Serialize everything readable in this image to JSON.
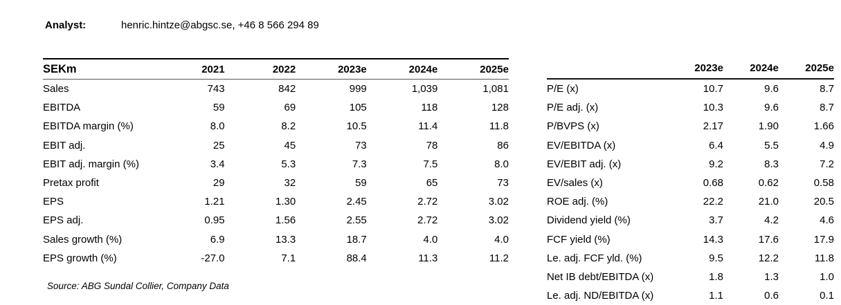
{
  "analyst": {
    "label": "Analyst:",
    "contact": "henric.hintze@abgsc.se, +46 8 566 294 89"
  },
  "left_table": {
    "header": {
      "label": "SEKm",
      "columns": [
        "2021",
        "2022",
        "2023e",
        "2024e",
        "2025e"
      ]
    },
    "rows": [
      {
        "label": "Sales",
        "values": [
          "743",
          "842",
          "999",
          "1,039",
          "1,081"
        ]
      },
      {
        "label": "EBITDA",
        "values": [
          "59",
          "69",
          "105",
          "118",
          "128"
        ]
      },
      {
        "label": "EBITDA margin (%)",
        "values": [
          "8.0",
          "8.2",
          "10.5",
          "11.4",
          "11.8"
        ]
      },
      {
        "label": "EBIT adj.",
        "values": [
          "25",
          "45",
          "73",
          "78",
          "86"
        ]
      },
      {
        "label": "EBIT adj. margin (%)",
        "values": [
          "3.4",
          "5.3",
          "7.3",
          "7.5",
          "8.0"
        ]
      },
      {
        "label": "Pretax profit",
        "values": [
          "29",
          "32",
          "59",
          "65",
          "73"
        ]
      },
      {
        "label": "EPS",
        "values": [
          "1.21",
          "1.30",
          "2.45",
          "2.72",
          "3.02"
        ]
      },
      {
        "label": "EPS adj.",
        "values": [
          "0.95",
          "1.56",
          "2.55",
          "2.72",
          "3.02"
        ]
      },
      {
        "label": "Sales growth (%)",
        "values": [
          "6.9",
          "13.3",
          "18.7",
          "4.0",
          "4.0"
        ]
      },
      {
        "label": "EPS growth (%)",
        "values": [
          "-27.0",
          "7.1",
          "88.4",
          "11.3",
          "11.2"
        ]
      }
    ]
  },
  "right_table": {
    "header": {
      "label": "",
      "columns": [
        "2023e",
        "2024e",
        "2025e"
      ]
    },
    "rows": [
      {
        "label": "P/E (x)",
        "values": [
          "10.7",
          "9.6",
          "8.7"
        ]
      },
      {
        "label": "P/E adj. (x)",
        "values": [
          "10.3",
          "9.6",
          "8.7"
        ]
      },
      {
        "label": "P/BVPS (x)",
        "values": [
          "2.17",
          "1.90",
          "1.66"
        ]
      },
      {
        "label": "EV/EBITDA (x)",
        "values": [
          "6.4",
          "5.5",
          "4.9"
        ]
      },
      {
        "label": "EV/EBIT adj. (x)",
        "values": [
          "9.2",
          "8.3",
          "7.2"
        ]
      },
      {
        "label": "EV/sales (x)",
        "values": [
          "0.68",
          "0.62",
          "0.58"
        ]
      },
      {
        "label": "ROE adj. (%)",
        "values": [
          "22.2",
          "21.0",
          "20.5"
        ]
      },
      {
        "label": "Dividend yield (%)",
        "values": [
          "3.7",
          "4.2",
          "4.6"
        ]
      },
      {
        "label": "FCF yield (%)",
        "values": [
          "14.3",
          "17.6",
          "17.9"
        ]
      },
      {
        "label": "Le. adj. FCF yld. (%)",
        "values": [
          "9.5",
          "12.2",
          "11.8"
        ]
      },
      {
        "label": "Net IB debt/EBITDA (x)",
        "values": [
          "1.8",
          "1.3",
          "1.0"
        ]
      },
      {
        "label": "Le. adj. ND/EBITDA (x)",
        "values": [
          "1.1",
          "0.6",
          "0.1"
        ]
      }
    ]
  },
  "source": "Source: ABG Sundal Collier, Company Data"
}
